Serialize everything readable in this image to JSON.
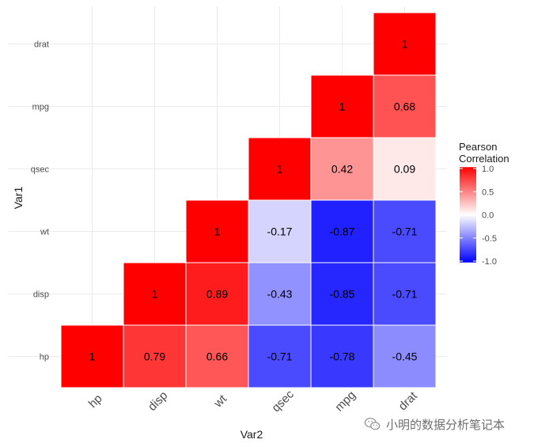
{
  "chart_data": {
    "type": "heatmap",
    "title": "",
    "xlabel": "Var2",
    "ylabel": "Var1",
    "variables": [
      "hp",
      "disp",
      "wt",
      "qsec",
      "mpg",
      "drat"
    ],
    "cells": [
      {
        "var1": "hp",
        "var2": "hp",
        "value": 1,
        "label": "1"
      },
      {
        "var1": "hp",
        "var2": "disp",
        "value": 0.79,
        "label": "0.79"
      },
      {
        "var1": "hp",
        "var2": "wt",
        "value": 0.66,
        "label": "0.66"
      },
      {
        "var1": "hp",
        "var2": "qsec",
        "value": -0.71,
        "label": "-0.71"
      },
      {
        "var1": "hp",
        "var2": "mpg",
        "value": -0.78,
        "label": "-0.78"
      },
      {
        "var1": "hp",
        "var2": "drat",
        "value": -0.45,
        "label": "-0.45"
      },
      {
        "var1": "disp",
        "var2": "disp",
        "value": 1,
        "label": "1"
      },
      {
        "var1": "disp",
        "var2": "wt",
        "value": 0.89,
        "label": "0.89"
      },
      {
        "var1": "disp",
        "var2": "qsec",
        "value": -0.43,
        "label": "-0.43"
      },
      {
        "var1": "disp",
        "var2": "mpg",
        "value": -0.85,
        "label": "-0.85"
      },
      {
        "var1": "disp",
        "var2": "drat",
        "value": -0.71,
        "label": "-0.71"
      },
      {
        "var1": "wt",
        "var2": "wt",
        "value": 1,
        "label": "1"
      },
      {
        "var1": "wt",
        "var2": "qsec",
        "value": -0.17,
        "label": "-0.17"
      },
      {
        "var1": "wt",
        "var2": "mpg",
        "value": -0.87,
        "label": "-0.87"
      },
      {
        "var1": "wt",
        "var2": "drat",
        "value": -0.71,
        "label": "-0.71"
      },
      {
        "var1": "qsec",
        "var2": "qsec",
        "value": 1,
        "label": "1"
      },
      {
        "var1": "qsec",
        "var2": "mpg",
        "value": 0.42,
        "label": "0.42"
      },
      {
        "var1": "qsec",
        "var2": "drat",
        "value": 0.09,
        "label": "0.09"
      },
      {
        "var1": "mpg",
        "var2": "mpg",
        "value": 1,
        "label": "1"
      },
      {
        "var1": "mpg",
        "var2": "drat",
        "value": 0.68,
        "label": "0.68"
      },
      {
        "var1": "drat",
        "var2": "drat",
        "value": 1,
        "label": "1"
      }
    ],
    "legend": {
      "title_line1": "Pearson",
      "title_line2": "Correlation",
      "ticks": [
        1.0,
        0.5,
        0.0,
        -0.5,
        -1.0
      ],
      "tick_labels": [
        "1.0",
        "0.5",
        "0.0",
        "-0.5",
        "-1.0"
      ],
      "low_color": "#0000ff",
      "mid_color": "#ffffff",
      "high_color": "#ff0000",
      "limits": [
        -1,
        1
      ],
      "position": "right"
    },
    "colors": {
      "grid": "#ebebeb",
      "axis_text": "#4d4d4d",
      "axis_title": "#1a1a1a"
    }
  },
  "watermark": {
    "text": "小明的数据分析笔记本",
    "icon": "wechat-icon"
  }
}
